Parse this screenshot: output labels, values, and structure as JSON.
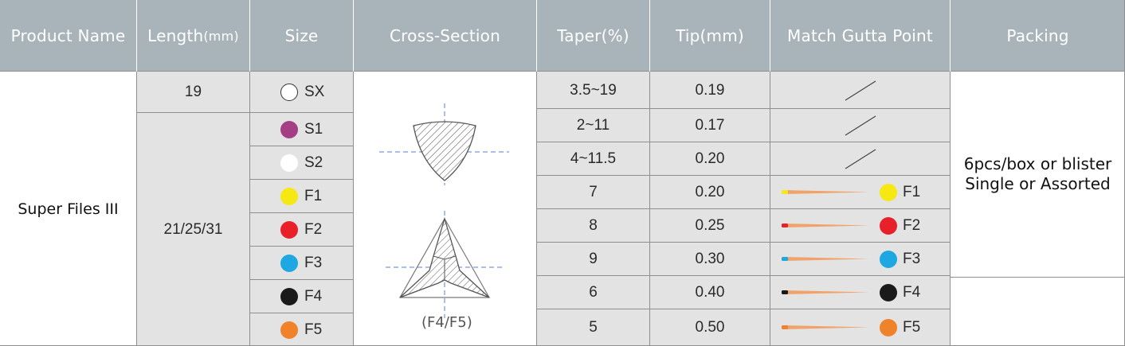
{
  "headers": {
    "product_name": "Product Name",
    "length": "Length",
    "length_unit": "(mm)",
    "size": "Size",
    "cross_section": "Cross-Section",
    "taper": "Taper(%)",
    "tip": "Tip(mm)",
    "match_gutta_point": "Match Gutta Point",
    "packing": "Packing"
  },
  "product_name": "Super Files III",
  "lengths": [
    "19",
    "21/25/31"
  ],
  "cross_section_caption": "(F4/F5)",
  "packing_lines": [
    "6pcs/box or blister",
    "Single or Assorted"
  ],
  "rows": [
    {
      "size": "SX",
      "dot_color": "none",
      "taper": "3.5~19",
      "tip": "0.19",
      "gutta": null
    },
    {
      "size": "S1",
      "dot_color": "#a43f86",
      "taper": "2~11",
      "tip": "0.17",
      "gutta": null
    },
    {
      "size": "S2",
      "dot_color": "#ffffff",
      "taper": "4~11.5",
      "tip": "0.20",
      "gutta": null
    },
    {
      "size": "F1",
      "dot_color": "#f6e813",
      "taper": "7",
      "tip": "0.20",
      "gutta": "F1"
    },
    {
      "size": "F2",
      "dot_color": "#e8202a",
      "taper": "8",
      "tip": "0.25",
      "gutta": "F2"
    },
    {
      "size": "F3",
      "dot_color": "#1ea7e1",
      "taper": "9",
      "tip": "0.30",
      "gutta": "F3"
    },
    {
      "size": "F4",
      "dot_color": "#1a1a1a",
      "taper": "6",
      "tip": "0.40",
      "gutta": "F4"
    },
    {
      "size": "F5",
      "dot_color": "#f0832a",
      "taper": "5",
      "tip": "0.50",
      "gutta": "F5"
    }
  ]
}
